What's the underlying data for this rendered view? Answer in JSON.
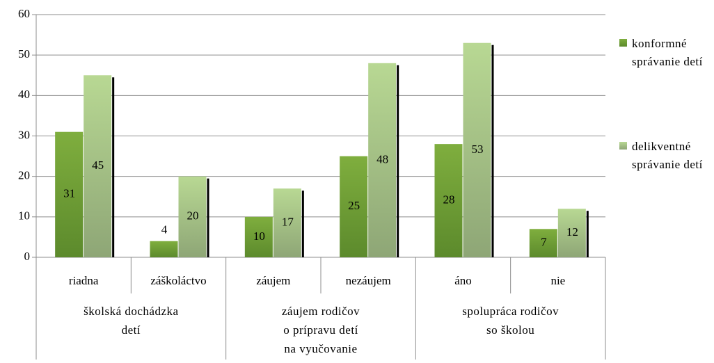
{
  "chart_data": {
    "type": "bar",
    "categories": [
      "riadna",
      "záškoláctvo",
      "záujem",
      "nezáujem",
      "áno",
      "nie"
    ],
    "groups": [
      [
        "školská dochádzka",
        "detí"
      ],
      [
        "záujem rodičov",
        "o prípravu detí",
        "na vyučovanie"
      ],
      [
        "spolupráca rodičov",
        "so školou"
      ]
    ],
    "series": [
      {
        "name": "konformné správanie detí",
        "color": "#6f9b34",
        "values": [
          31,
          4,
          10,
          25,
          28,
          7
        ]
      },
      {
        "name": "delikventné správanie detí",
        "color": "#a9c885",
        "values": [
          45,
          20,
          17,
          48,
          53,
          12
        ]
      }
    ],
    "ylim": [
      0,
      60
    ],
    "yticks": [
      0,
      10,
      20,
      30,
      40,
      50,
      60
    ],
    "grid": true,
    "legend": "right"
  }
}
